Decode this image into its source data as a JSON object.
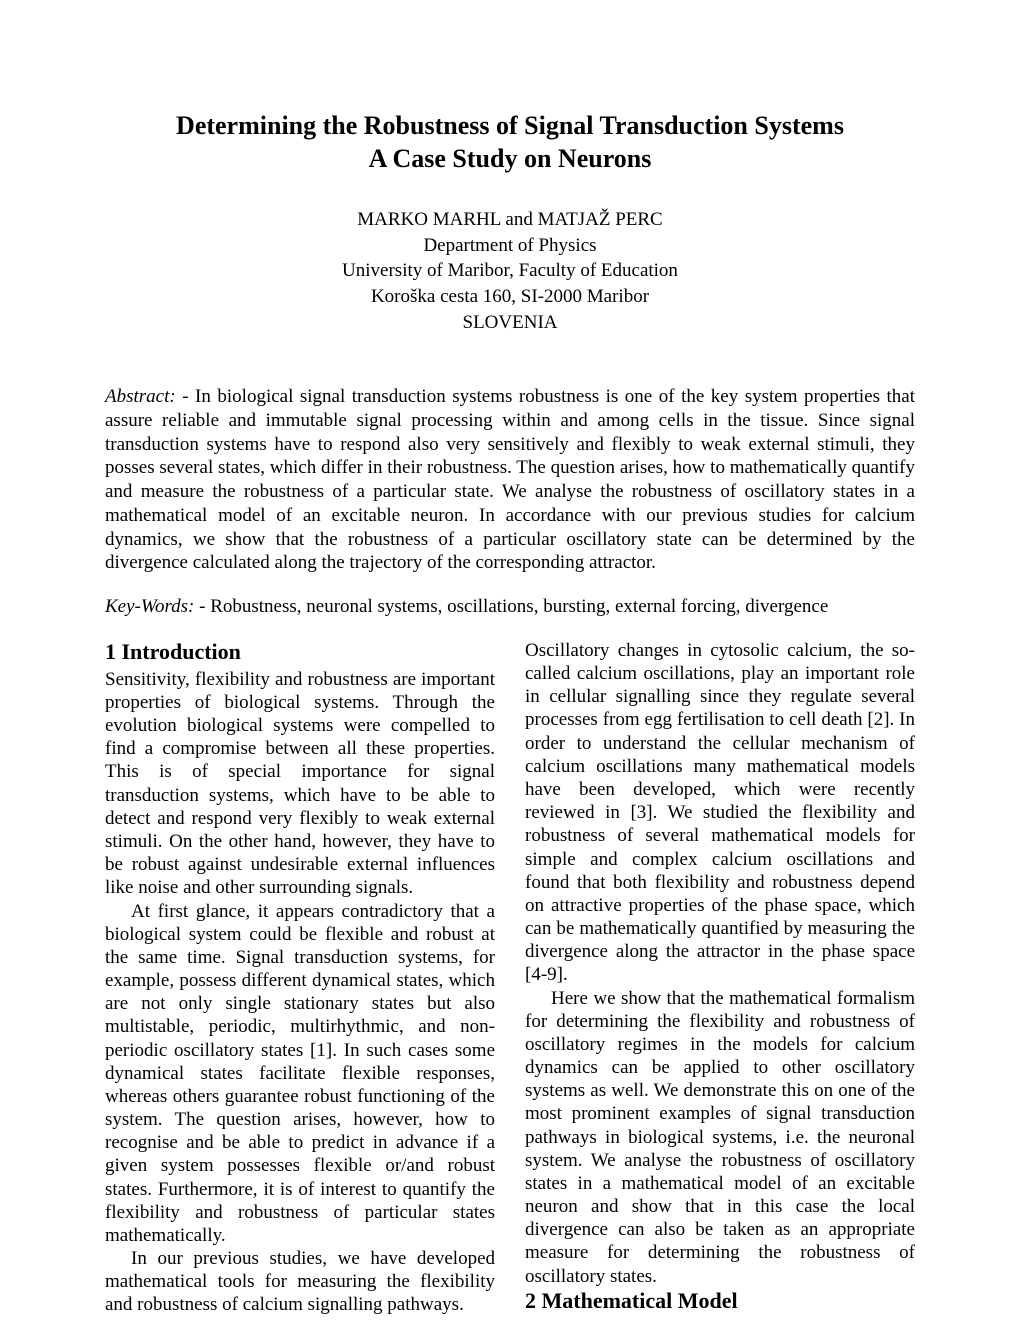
{
  "title_line1": "Determining the Robustness of Signal Transduction Systems",
  "title_line2": "A Case Study on Neurons",
  "authors": "MARKO MARHL and MATJAŽ PERC",
  "department": "Department of Physics",
  "affiliation": "University of Maribor, Faculty of Education",
  "address": "Koroška cesta 160, SI-2000 Maribor",
  "country": "SLOVENIA",
  "abstract_label": "Abstract: -",
  "abstract_text": " In biological signal transduction systems robustness is one of the key system properties that assure reliable and immutable signal processing within and among cells in the tissue. Since signal transduction systems have to respond also very sensitively and flexibly to weak external stimuli, they posses several states, which differ in their robustness. The question arises, how to mathematically quantify and measure the robustness of a particular state. We analyse the robustness of oscillatory states in a mathematical model of an excitable neuron. In accordance with our previous studies for calcium dynamics, we show that the robustness of a particular oscillatory state can be determined by the divergence calculated along the trajectory of the corresponding attractor.",
  "keywords_label": "Key-Words: -",
  "keywords_text": " Robustness, neuronal systems, oscillations, bursting, external forcing, divergence",
  "section1_heading": "1  Introduction",
  "section2_heading": "2  Mathematical Model",
  "col1_p1": "Sensitivity, flexibility and robustness are important properties of biological systems. Through the evolution biological systems were compelled to find a compromise between all these properties. This is of special importance for signal transduction systems, which have to be able to detect and respond very flexibly to weak external stimuli. On the other hand, however, they have to be robust against undesirable external influences like noise and other surrounding signals.",
  "col1_p2": "At first glance, it appears contradictory that a biological system could be flexible and robust at the same time. Signal transduction systems, for example, possess different dynamical states, which are not only single stationary states but also multistable, periodic, multirhythmic, and non-periodic oscillatory states [1]. In such cases some dynamical states facilitate flexible responses, whereas others guarantee robust functioning of the system. The question arises, however, how to recognise and be able to predict in advance if a given system possesses flexible or/and robust states. Furthermore, it is of interest to quantify the flexibility and robustness of particular states mathematically.",
  "col1_p3": "In our previous studies, we have developed mathematical tools for measuring the flexibility and robustness of calcium signalling pathways.",
  "col2_p1": "Oscillatory changes in cytosolic calcium, the so-called calcium oscillations, play an important role in cellular signalling since they regulate several processes from egg fertilisation to cell death [2]. In order to understand the cellular mechanism of calcium oscillations many mathematical models have been developed, which were recently reviewed in [3]. We studied the flexibility and robustness of several mathematical models for simple and complex calcium oscillations and found that both flexibility and robustness depend on attractive properties of the phase space, which can be mathematically quantified by measuring the divergence along the attractor in the phase space [4-9].",
  "col2_p2": "Here we show that the mathematical formalism for determining the flexibility and robustness of oscillatory regimes in the models for calcium dynamics can be applied to other oscillatory systems as well. We demonstrate this on one of the most prominent examples of signal transduction pathways in biological systems, i.e. the neuronal system. We analyse the robustness of oscillatory states in a mathematical model of an excitable neuron and show that in this case the local divergence can also be taken as an appropriate measure for determining the robustness of oscillatory states."
}
